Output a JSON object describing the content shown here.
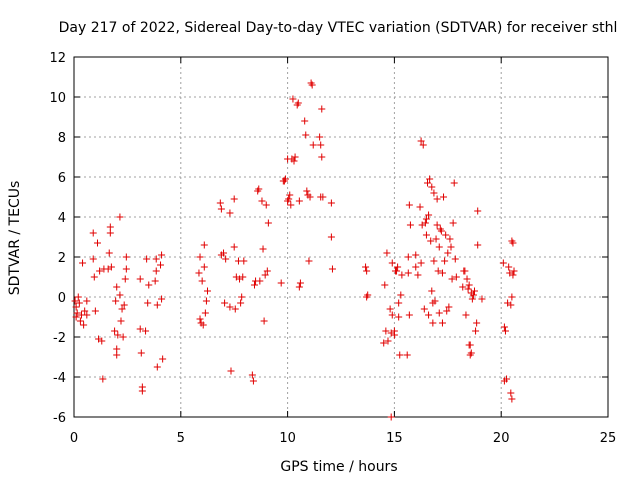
{
  "chart_data": {
    "type": "scatter",
    "title": "Day 217 of 2022, Sidereal Day-to-day VTEC variation (SDTVAR) for receiver sthl",
    "xlabel": "GPS time / hours",
    "ylabel": "SDTVAR / TECUs",
    "xlim": [
      0,
      25
    ],
    "ylim": [
      -6,
      12
    ],
    "xticks": [
      0,
      5,
      10,
      15,
      20,
      25
    ],
    "yticks": [
      -6,
      -4,
      -2,
      0,
      2,
      4,
      6,
      8,
      10,
      12
    ],
    "grid": true,
    "marker": "plus",
    "color": "#e00000",
    "series": [
      {
        "name": "SDTVAR",
        "points": [
          [
            0.05,
            -0.2
          ],
          [
            0.1,
            -0.5
          ],
          [
            0.1,
            -1.0
          ],
          [
            0.15,
            -0.8
          ],
          [
            0.2,
            0.0
          ],
          [
            0.25,
            -0.3
          ],
          [
            0.3,
            -1.2
          ],
          [
            0.35,
            -0.9
          ],
          [
            0.4,
            1.7
          ],
          [
            0.45,
            -1.4
          ],
          [
            0.5,
            -0.7
          ],
          [
            0.6,
            -0.9
          ],
          [
            0.6,
            -0.2
          ],
          [
            0.9,
            3.2
          ],
          [
            0.9,
            1.9
          ],
          [
            0.95,
            1.0
          ],
          [
            1.0,
            -0.7
          ],
          [
            1.1,
            2.7
          ],
          [
            1.15,
            -2.1
          ],
          [
            1.2,
            1.3
          ],
          [
            1.3,
            -2.2
          ],
          [
            1.35,
            -4.1
          ],
          [
            1.4,
            1.4
          ],
          [
            1.6,
            1.4
          ],
          [
            1.65,
            2.2
          ],
          [
            1.7,
            3.5
          ],
          [
            1.7,
            3.2
          ],
          [
            1.75,
            1.5
          ],
          [
            1.9,
            -1.7
          ],
          [
            1.95,
            -0.2
          ],
          [
            2.0,
            -2.6
          ],
          [
            2.0,
            -2.9
          ],
          [
            2.0,
            0.5
          ],
          [
            2.05,
            -1.9
          ],
          [
            2.15,
            4.0
          ],
          [
            2.15,
            0.1
          ],
          [
            2.2,
            -1.2
          ],
          [
            2.25,
            -0.6
          ],
          [
            2.3,
            -2.0
          ],
          [
            2.35,
            -0.4
          ],
          [
            2.4,
            0.9
          ],
          [
            2.45,
            2.0
          ],
          [
            2.45,
            1.4
          ],
          [
            3.1,
            0.9
          ],
          [
            3.1,
            -1.6
          ],
          [
            3.15,
            -2.8
          ],
          [
            3.2,
            -4.5
          ],
          [
            3.2,
            -4.7
          ],
          [
            3.35,
            -1.7
          ],
          [
            3.4,
            1.9
          ],
          [
            3.45,
            -0.3
          ],
          [
            3.5,
            0.6
          ],
          [
            3.8,
            0.8
          ],
          [
            3.85,
            1.9
          ],
          [
            3.85,
            1.3
          ],
          [
            3.9,
            -0.4
          ],
          [
            3.9,
            -3.5
          ],
          [
            4.05,
            1.6
          ],
          [
            4.1,
            2.1
          ],
          [
            4.1,
            -0.1
          ],
          [
            4.15,
            -3.1
          ],
          [
            5.85,
            1.2
          ],
          [
            5.9,
            2.0
          ],
          [
            5.9,
            -1.1
          ],
          [
            5.95,
            -1.3
          ],
          [
            6.0,
            0.8
          ],
          [
            6.05,
            -1.4
          ],
          [
            6.1,
            2.6
          ],
          [
            6.1,
            1.5
          ],
          [
            6.15,
            -0.8
          ],
          [
            6.2,
            -0.2
          ],
          [
            6.25,
            0.3
          ],
          [
            6.85,
            4.7
          ],
          [
            6.9,
            4.4
          ],
          [
            6.9,
            2.1
          ],
          [
            7.0,
            2.2
          ],
          [
            7.05,
            -0.3
          ],
          [
            7.1,
            1.9
          ],
          [
            7.3,
            -0.5
          ],
          [
            7.3,
            4.2
          ],
          [
            7.35,
            -3.7
          ],
          [
            7.5,
            4.9
          ],
          [
            7.5,
            2.5
          ],
          [
            7.55,
            -0.6
          ],
          [
            7.6,
            1.0
          ],
          [
            7.7,
            1.8
          ],
          [
            7.75,
            0.9
          ],
          [
            7.8,
            -0.3
          ],
          [
            7.85,
            0.0
          ],
          [
            7.9,
            1.0
          ],
          [
            7.95,
            1.8
          ],
          [
            8.35,
            -3.9
          ],
          [
            8.4,
            -4.2
          ],
          [
            8.45,
            0.6
          ],
          [
            8.5,
            0.8
          ],
          [
            8.6,
            5.3
          ],
          [
            8.65,
            5.4
          ],
          [
            8.7,
            0.8
          ],
          [
            8.8,
            4.8
          ],
          [
            8.85,
            2.4
          ],
          [
            8.9,
            -1.2
          ],
          [
            8.95,
            1.1
          ],
          [
            9.0,
            4.6
          ],
          [
            9.05,
            1.3
          ],
          [
            9.1,
            3.7
          ],
          [
            9.7,
            0.7
          ],
          [
            9.8,
            5.8
          ],
          [
            9.85,
            5.8
          ],
          [
            9.9,
            5.9
          ],
          [
            10.0,
            4.8
          ],
          [
            10.0,
            6.9
          ],
          [
            10.05,
            4.9
          ],
          [
            10.1,
            5.1
          ],
          [
            10.15,
            4.6
          ],
          [
            10.2,
            6.9
          ],
          [
            10.25,
            9.9
          ],
          [
            10.3,
            6.8
          ],
          [
            10.35,
            7.0
          ],
          [
            10.45,
            9.6
          ],
          [
            10.5,
            9.7
          ],
          [
            10.55,
            4.8
          ],
          [
            10.55,
            0.5
          ],
          [
            10.6,
            0.7
          ],
          [
            10.8,
            8.8
          ],
          [
            10.85,
            8.1
          ],
          [
            10.9,
            5.3
          ],
          [
            10.95,
            5.1
          ],
          [
            11.0,
            1.8
          ],
          [
            11.05,
            5.0
          ],
          [
            11.1,
            10.7
          ],
          [
            11.15,
            10.6
          ],
          [
            11.2,
            7.6
          ],
          [
            11.5,
            8.0
          ],
          [
            11.55,
            5.0
          ],
          [
            11.55,
            7.6
          ],
          [
            11.6,
            7.0
          ],
          [
            11.6,
            9.4
          ],
          [
            11.65,
            5.0
          ],
          [
            12.05,
            4.7
          ],
          [
            12.05,
            3.0
          ],
          [
            12.1,
            1.4
          ],
          [
            13.65,
            1.5
          ],
          [
            13.7,
            1.3
          ],
          [
            13.7,
            0.0
          ],
          [
            13.75,
            0.1
          ],
          [
            14.5,
            -2.3
          ],
          [
            14.55,
            0.6
          ],
          [
            14.6,
            -1.7
          ],
          [
            14.65,
            2.2
          ],
          [
            14.7,
            -2.2
          ],
          [
            14.8,
            -0.6
          ],
          [
            14.85,
            -1.8
          ],
          [
            14.85,
            -6.0
          ],
          [
            14.9,
            -0.9
          ],
          [
            14.9,
            1.7
          ],
          [
            15.0,
            -1.9
          ],
          [
            15.0,
            -1.7
          ],
          [
            15.05,
            1.3
          ],
          [
            15.1,
            1.3
          ],
          [
            15.15,
            1.5
          ],
          [
            15.2,
            -0.3
          ],
          [
            15.2,
            -1.0
          ],
          [
            15.25,
            -2.9
          ],
          [
            15.3,
            0.1
          ],
          [
            15.35,
            1.1
          ],
          [
            15.6,
            -2.9
          ],
          [
            15.65,
            2.0
          ],
          [
            15.65,
            1.2
          ],
          [
            15.7,
            -0.9
          ],
          [
            15.7,
            4.6
          ],
          [
            15.75,
            3.6
          ],
          [
            16.0,
            1.5
          ],
          [
            16.0,
            2.1
          ],
          [
            16.1,
            1.1
          ],
          [
            16.2,
            4.5
          ],
          [
            16.25,
            1.7
          ],
          [
            16.25,
            7.8
          ],
          [
            16.3,
            3.6
          ],
          [
            16.35,
            7.6
          ],
          [
            16.4,
            -0.6
          ],
          [
            16.45,
            3.7
          ],
          [
            16.5,
            3.1
          ],
          [
            16.5,
            3.9
          ],
          [
            16.55,
            5.7
          ],
          [
            16.6,
            -0.9
          ],
          [
            16.6,
            4.1
          ],
          [
            16.65,
            5.9
          ],
          [
            16.7,
            2.8
          ],
          [
            16.75,
            5.5
          ],
          [
            16.75,
            0.3
          ],
          [
            16.8,
            -0.3
          ],
          [
            16.8,
            -1.3
          ],
          [
            16.85,
            1.8
          ],
          [
            16.85,
            5.2
          ],
          [
            16.9,
            -0.2
          ],
          [
            16.95,
            2.9
          ],
          [
            17.0,
            3.6
          ],
          [
            17.0,
            4.9
          ],
          [
            17.05,
            1.3
          ],
          [
            17.1,
            -0.8
          ],
          [
            17.1,
            2.5
          ],
          [
            17.15,
            3.4
          ],
          [
            17.2,
            3.3
          ],
          [
            17.25,
            1.2
          ],
          [
            17.25,
            -1.3
          ],
          [
            17.3,
            5.0
          ],
          [
            17.35,
            1.8
          ],
          [
            17.4,
            3.1
          ],
          [
            17.45,
            -0.7
          ],
          [
            17.5,
            2.2
          ],
          [
            17.55,
            -0.5
          ],
          [
            17.6,
            2.9
          ],
          [
            17.65,
            2.5
          ],
          [
            17.7,
            0.9
          ],
          [
            17.75,
            3.7
          ],
          [
            17.8,
            5.7
          ],
          [
            17.85,
            1.9
          ],
          [
            17.9,
            1.0
          ],
          [
            18.2,
            0.5
          ],
          [
            18.25,
            1.3
          ],
          [
            18.3,
            1.3
          ],
          [
            18.35,
            -0.9
          ],
          [
            18.4,
            0.9
          ],
          [
            18.45,
            0.4
          ],
          [
            18.5,
            0.6
          ],
          [
            18.5,
            -2.4
          ],
          [
            18.55,
            -2.4
          ],
          [
            18.55,
            -2.9
          ],
          [
            18.6,
            -2.8
          ],
          [
            18.6,
            0.2
          ],
          [
            18.65,
            -0.1
          ],
          [
            18.7,
            0.1
          ],
          [
            18.75,
            0.3
          ],
          [
            18.8,
            -1.7
          ],
          [
            18.85,
            -1.3
          ],
          [
            18.9,
            2.6
          ],
          [
            18.9,
            4.3
          ],
          [
            19.1,
            -0.1
          ],
          [
            20.1,
            1.7
          ],
          [
            20.15,
            -1.5
          ],
          [
            20.15,
            -4.2
          ],
          [
            20.2,
            -1.7
          ],
          [
            20.25,
            -4.1
          ],
          [
            20.3,
            -0.3
          ],
          [
            20.35,
            1.5
          ],
          [
            20.4,
            1.2
          ],
          [
            20.45,
            -0.4
          ],
          [
            20.45,
            -4.8
          ],
          [
            20.5,
            -5.1
          ],
          [
            20.5,
            2.8
          ],
          [
            20.5,
            0.0
          ],
          [
            20.55,
            2.7
          ],
          [
            20.55,
            1.1
          ],
          [
            20.6,
            1.3
          ]
        ]
      }
    ]
  }
}
